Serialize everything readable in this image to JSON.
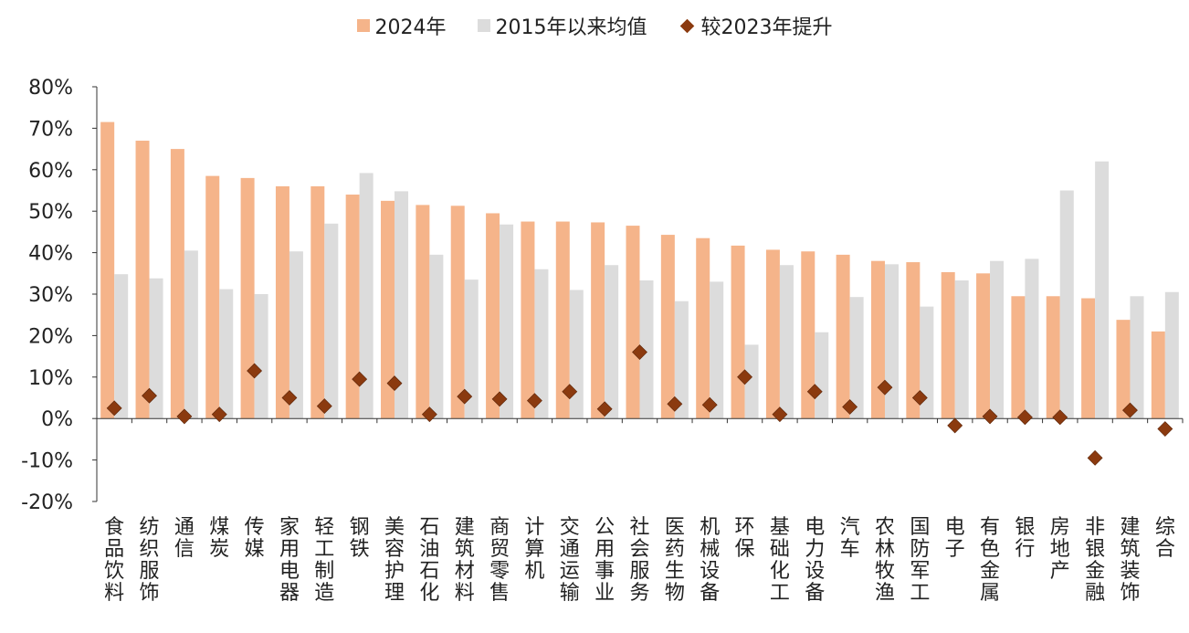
{
  "chart_data": {
    "type": "bar",
    "title": "",
    "xlabel": "",
    "ylabel": "",
    "ylim": [
      -20,
      80
    ],
    "yticks": [
      -20,
      -10,
      0,
      10,
      20,
      30,
      40,
      50,
      60,
      70,
      80
    ],
    "ytick_labels": [
      "-20%",
      "-10%",
      "0%",
      "10%",
      "20%",
      "30%",
      "40%",
      "50%",
      "60%",
      "70%",
      "80%"
    ],
    "legend": [
      "2024年",
      "2015年以来均值",
      "较2023年提升"
    ],
    "legend_position": "top-center",
    "categories": [
      "食品饮料",
      "纺织服饰",
      "通信",
      "煤炭",
      "传媒",
      "家用电器",
      "轻工制造",
      "钢铁",
      "美容护理",
      "石油石化",
      "建筑材料",
      "商贸零售",
      "计算机",
      "交通运输",
      "公用事业",
      "社会服务",
      "医药生物",
      "机械设备",
      "环保",
      "基础化工",
      "电力设备",
      "汽车",
      "农林牧渔",
      "国防军工",
      "电子",
      "有色金属",
      "银行",
      "房地产",
      "非银金融",
      "建筑装饰",
      "综合"
    ],
    "series": [
      {
        "name": "2024年",
        "type": "bar",
        "color": "#F5B48A",
        "values": [
          71.5,
          67.0,
          65.0,
          58.5,
          58.0,
          56.0,
          56.0,
          54.0,
          52.5,
          51.5,
          51.3,
          49.5,
          47.5,
          47.5,
          47.3,
          46.5,
          44.3,
          43.5,
          41.7,
          40.7,
          40.3,
          39.5,
          38.0,
          37.7,
          35.3,
          35.0,
          29.5,
          29.5,
          29.0,
          23.8,
          21.0
        ]
      },
      {
        "name": "2015年以来均值",
        "type": "bar",
        "color": "#DCDCDC",
        "values": [
          34.8,
          33.8,
          40.5,
          31.2,
          30.0,
          40.3,
          47.0,
          59.2,
          54.8,
          39.5,
          33.5,
          46.8,
          36.0,
          31.0,
          37.0,
          33.3,
          28.3,
          33.0,
          17.8,
          37.0,
          20.8,
          29.3,
          37.2,
          27.0,
          33.3,
          38.0,
          38.5,
          55.0,
          62.0,
          29.5,
          30.5
        ]
      },
      {
        "name": "较2023年提升",
        "type": "scatter",
        "marker": "diamond",
        "color": "#8B3A0F",
        "values": [
          2.5,
          5.5,
          0.5,
          1.0,
          11.5,
          5.0,
          3.0,
          9.5,
          8.5,
          1.0,
          5.3,
          4.7,
          4.3,
          6.5,
          2.3,
          16.0,
          3.5,
          3.3,
          10.0,
          1.0,
          6.5,
          2.8,
          7.5,
          5.0,
          -1.7,
          0.5,
          0.3,
          0.3,
          -9.5,
          2.0,
          -2.5
        ]
      }
    ]
  }
}
